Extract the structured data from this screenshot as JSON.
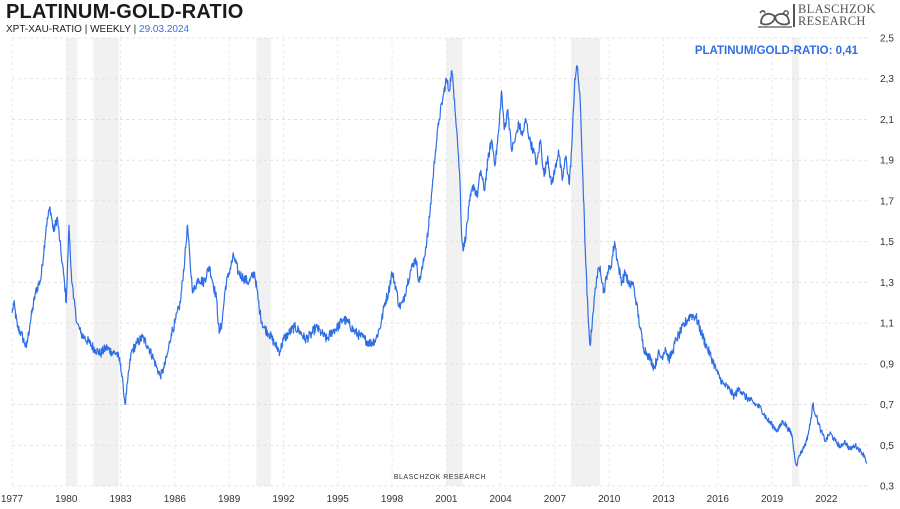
{
  "header": {
    "title": "PLATINUM-GOLD-RATIO",
    "subtitle_prefix": "XPT-XAU-RATIO | WEEKLY |",
    "date": "29.03.2024"
  },
  "logo": {
    "line1": "BLASCHZOK",
    "line2": "RESEARCH",
    "icon": "bull-bear-icon"
  },
  "watermark": "BLASCHZOK  RESEARCH",
  "chart_data": {
    "type": "line",
    "title": "PLATINUM-GOLD-RATIO",
    "latest_label": "PLATINUM/GOLD-RATIO: 0,41",
    "line_color": "#2f6ee6",
    "x_tick_labels": [
      "1977",
      "1980",
      "1983",
      "1986",
      "1989",
      "1992",
      "1995",
      "1998",
      "2001",
      "2004",
      "2007",
      "2010",
      "2013",
      "2016",
      "2019",
      "2022"
    ],
    "y_tick_labels": [
      "0,3",
      "0,5",
      "0,7",
      "0,9",
      "1,1",
      "1,3",
      "1,5",
      "1,7",
      "1,9",
      "2,1",
      "2,3",
      "2,5"
    ],
    "y_ticks": [
      0.3,
      0.5,
      0.7,
      0.9,
      1.1,
      1.3,
      1.5,
      1.7,
      1.9,
      2.1,
      2.3,
      2.5
    ],
    "xlim": [
      1977.0,
      2024.3
    ],
    "ylim": [
      0.3,
      2.5
    ],
    "y_axis_side": "right",
    "grid": true,
    "shaded_periods": [
      [
        1980.0,
        1980.6
      ],
      [
        1981.5,
        1982.9
      ],
      [
        1990.5,
        1991.3
      ],
      [
        2001.0,
        2001.9
      ],
      [
        2007.9,
        2009.5
      ],
      [
        2020.1,
        2020.5
      ]
    ],
    "series": [
      {
        "values": [
          [
            1977.0,
            1.15
          ],
          [
            1977.1,
            1.2
          ],
          [
            1977.3,
            1.08
          ],
          [
            1977.5,
            1.05
          ],
          [
            1977.7,
            1.0
          ],
          [
            1977.8,
            0.98
          ],
          [
            1978.0,
            1.1
          ],
          [
            1978.3,
            1.25
          ],
          [
            1978.6,
            1.32
          ],
          [
            1978.9,
            1.58
          ],
          [
            1979.1,
            1.67
          ],
          [
            1979.3,
            1.55
          ],
          [
            1979.5,
            1.62
          ],
          [
            1979.7,
            1.45
          ],
          [
            1979.9,
            1.3
          ],
          [
            1980.0,
            1.2
          ],
          [
            1980.15,
            1.58
          ],
          [
            1980.25,
            1.38
          ],
          [
            1980.4,
            1.22
          ],
          [
            1980.6,
            1.1
          ],
          [
            1980.8,
            1.05
          ],
          [
            1981.0,
            1.03
          ],
          [
            1981.3,
            1.0
          ],
          [
            1981.6,
            0.97
          ],
          [
            1981.9,
            0.95
          ],
          [
            1982.2,
            0.98
          ],
          [
            1982.5,
            0.96
          ],
          [
            1982.8,
            0.95
          ],
          [
            1983.0,
            0.9
          ],
          [
            1983.15,
            0.78
          ],
          [
            1983.25,
            0.7
          ],
          [
            1983.4,
            0.82
          ],
          [
            1983.6,
            0.96
          ],
          [
            1983.9,
            1.0
          ],
          [
            1984.2,
            1.03
          ],
          [
            1984.5,
            0.99
          ],
          [
            1984.8,
            0.93
          ],
          [
            1985.0,
            0.88
          ],
          [
            1985.2,
            0.84
          ],
          [
            1985.4,
            0.88
          ],
          [
            1985.6,
            0.95
          ],
          [
            1985.8,
            1.05
          ],
          [
            1986.0,
            1.1
          ],
          [
            1986.3,
            1.2
          ],
          [
            1986.55,
            1.42
          ],
          [
            1986.7,
            1.58
          ],
          [
            1986.85,
            1.38
          ],
          [
            1987.0,
            1.25
          ],
          [
            1987.3,
            1.32
          ],
          [
            1987.6,
            1.3
          ],
          [
            1987.9,
            1.38
          ],
          [
            1988.1,
            1.3
          ],
          [
            1988.3,
            1.22
          ],
          [
            1988.45,
            1.05
          ],
          [
            1988.6,
            1.1
          ],
          [
            1988.8,
            1.28
          ],
          [
            1989.0,
            1.35
          ],
          [
            1989.25,
            1.43
          ],
          [
            1989.5,
            1.35
          ],
          [
            1989.8,
            1.32
          ],
          [
            1990.1,
            1.3
          ],
          [
            1990.4,
            1.35
          ],
          [
            1990.7,
            1.15
          ],
          [
            1990.9,
            1.08
          ],
          [
            1991.2,
            1.05
          ],
          [
            1991.5,
            1.0
          ],
          [
            1991.8,
            0.96
          ],
          [
            1992.0,
            1.02
          ],
          [
            1992.3,
            1.05
          ],
          [
            1992.6,
            1.08
          ],
          [
            1992.9,
            1.06
          ],
          [
            1993.2,
            1.02
          ],
          [
            1993.5,
            1.04
          ],
          [
            1993.8,
            1.08
          ],
          [
            1994.1,
            1.05
          ],
          [
            1994.4,
            1.02
          ],
          [
            1994.7,
            1.06
          ],
          [
            1995.0,
            1.08
          ],
          [
            1995.3,
            1.12
          ],
          [
            1995.6,
            1.1
          ],
          [
            1995.9,
            1.06
          ],
          [
            1996.2,
            1.04
          ],
          [
            1996.5,
            1.02
          ],
          [
            1996.8,
            1.0
          ],
          [
            1997.1,
            1.02
          ],
          [
            1997.4,
            1.1
          ],
          [
            1997.6,
            1.2
          ],
          [
            1997.8,
            1.25
          ],
          [
            1998.0,
            1.35
          ],
          [
            1998.2,
            1.28
          ],
          [
            1998.4,
            1.18
          ],
          [
            1998.6,
            1.2
          ],
          [
            1998.8,
            1.28
          ],
          [
            1999.0,
            1.35
          ],
          [
            1999.3,
            1.42
          ],
          [
            1999.5,
            1.3
          ],
          [
            1999.7,
            1.38
          ],
          [
            2000.0,
            1.55
          ],
          [
            2000.2,
            1.75
          ],
          [
            2000.4,
            1.95
          ],
          [
            2000.6,
            2.1
          ],
          [
            2000.8,
            2.2
          ],
          [
            2001.0,
            2.3
          ],
          [
            2001.15,
            2.24
          ],
          [
            2001.3,
            2.34
          ],
          [
            2001.45,
            2.2
          ],
          [
            2001.6,
            2.02
          ],
          [
            2001.75,
            1.8
          ],
          [
            2001.85,
            1.52
          ],
          [
            2001.95,
            1.46
          ],
          [
            2002.1,
            1.55
          ],
          [
            2002.3,
            1.7
          ],
          [
            2002.5,
            1.78
          ],
          [
            2002.7,
            1.72
          ],
          [
            2002.9,
            1.85
          ],
          [
            2003.1,
            1.75
          ],
          [
            2003.3,
            1.9
          ],
          [
            2003.5,
            2.0
          ],
          [
            2003.7,
            1.88
          ],
          [
            2003.9,
            2.05
          ],
          [
            2004.05,
            2.24
          ],
          [
            2004.2,
            2.05
          ],
          [
            2004.4,
            2.15
          ],
          [
            2004.6,
            1.95
          ],
          [
            2004.8,
            2.0
          ],
          [
            2005.0,
            2.08
          ],
          [
            2005.2,
            2.02
          ],
          [
            2005.4,
            2.1
          ],
          [
            2005.6,
            2.0
          ],
          [
            2005.8,
            1.95
          ],
          [
            2006.0,
            1.88
          ],
          [
            2006.2,
            2.0
          ],
          [
            2006.4,
            1.82
          ],
          [
            2006.6,
            1.92
          ],
          [
            2006.8,
            1.78
          ],
          [
            2007.0,
            1.85
          ],
          [
            2007.2,
            1.95
          ],
          [
            2007.4,
            1.8
          ],
          [
            2007.6,
            1.92
          ],
          [
            2007.8,
            1.78
          ],
          [
            2007.95,
            2.0
          ],
          [
            2008.1,
            2.3
          ],
          [
            2008.25,
            2.36
          ],
          [
            2008.4,
            2.18
          ],
          [
            2008.55,
            1.8
          ],
          [
            2008.7,
            1.4
          ],
          [
            2008.85,
            1.1
          ],
          [
            2008.95,
            0.99
          ],
          [
            2009.1,
            1.15
          ],
          [
            2009.3,
            1.32
          ],
          [
            2009.5,
            1.38
          ],
          [
            2009.7,
            1.25
          ],
          [
            2009.9,
            1.35
          ],
          [
            2010.1,
            1.38
          ],
          [
            2010.3,
            1.5
          ],
          [
            2010.5,
            1.38
          ],
          [
            2010.7,
            1.3
          ],
          [
            2010.9,
            1.35
          ],
          [
            2011.1,
            1.28
          ],
          [
            2011.3,
            1.3
          ],
          [
            2011.5,
            1.2
          ],
          [
            2011.7,
            1.08
          ],
          [
            2011.9,
            0.98
          ],
          [
            2012.1,
            0.95
          ],
          [
            2012.3,
            0.92
          ],
          [
            2012.5,
            0.88
          ],
          [
            2012.7,
            0.95
          ],
          [
            2012.9,
            0.93
          ],
          [
            2013.1,
            0.98
          ],
          [
            2013.3,
            0.92
          ],
          [
            2013.5,
            0.96
          ],
          [
            2013.7,
            1.02
          ],
          [
            2013.9,
            1.05
          ],
          [
            2014.2,
            1.1
          ],
          [
            2014.5,
            1.14
          ],
          [
            2014.8,
            1.13
          ],
          [
            2015.1,
            1.05
          ],
          [
            2015.4,
            0.98
          ],
          [
            2015.7,
            0.92
          ],
          [
            2016.0,
            0.85
          ],
          [
            2016.3,
            0.8
          ],
          [
            2016.6,
            0.78
          ],
          [
            2016.9,
            0.74
          ],
          [
            2017.2,
            0.78
          ],
          [
            2017.5,
            0.74
          ],
          [
            2017.8,
            0.72
          ],
          [
            2018.1,
            0.7
          ],
          [
            2018.4,
            0.68
          ],
          [
            2018.7,
            0.63
          ],
          [
            2019.0,
            0.6
          ],
          [
            2019.3,
            0.57
          ],
          [
            2019.6,
            0.62
          ],
          [
            2019.9,
            0.58
          ],
          [
            2020.1,
            0.55
          ],
          [
            2020.25,
            0.44
          ],
          [
            2020.35,
            0.4
          ],
          [
            2020.5,
            0.45
          ],
          [
            2020.7,
            0.48
          ],
          [
            2020.9,
            0.52
          ],
          [
            2021.1,
            0.6
          ],
          [
            2021.25,
            0.7
          ],
          [
            2021.45,
            0.64
          ],
          [
            2021.7,
            0.57
          ],
          [
            2021.95,
            0.52
          ],
          [
            2022.2,
            0.56
          ],
          [
            2022.5,
            0.52
          ],
          [
            2022.8,
            0.49
          ],
          [
            2023.0,
            0.52
          ],
          [
            2023.3,
            0.48
          ],
          [
            2023.6,
            0.5
          ],
          [
            2023.9,
            0.47
          ],
          [
            2024.1,
            0.45
          ],
          [
            2024.24,
            0.41
          ]
        ]
      }
    ]
  }
}
